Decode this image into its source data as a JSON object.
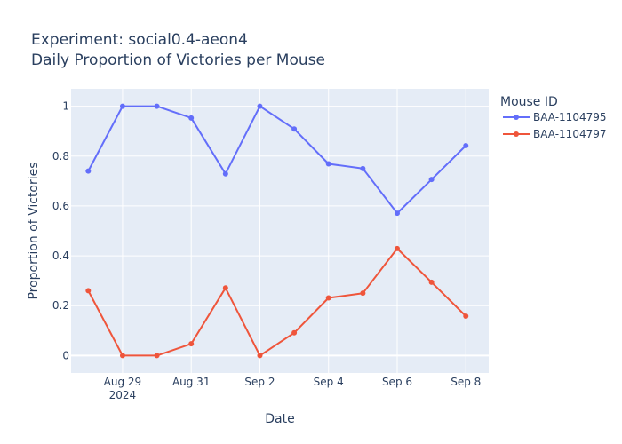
{
  "chart_data": {
    "type": "line",
    "title_line1": "Experiment: social0.4-aeon4",
    "title_line2": "Daily Proportion of Victories per Mouse",
    "xlabel": "Date",
    "ylabel": "Proportion of Victories",
    "x": [
      "2024-08-28",
      "2024-08-29",
      "2024-08-30",
      "2024-08-31",
      "2024-09-01",
      "2024-09-02",
      "2024-09-03",
      "2024-09-04",
      "2024-09-05",
      "2024-09-06",
      "2024-09-07",
      "2024-09-08"
    ],
    "x_ticks": [
      {
        "date": "2024-08-29",
        "label": "Aug 29",
        "sublabel": "2024"
      },
      {
        "date": "2024-08-31",
        "label": "Aug 31",
        "sublabel": ""
      },
      {
        "date": "2024-09-02",
        "label": "Sep 2",
        "sublabel": ""
      },
      {
        "date": "2024-09-04",
        "label": "Sep 4",
        "sublabel": ""
      },
      {
        "date": "2024-09-06",
        "label": "Sep 6",
        "sublabel": ""
      },
      {
        "date": "2024-09-08",
        "label": "Sep 8",
        "sublabel": ""
      }
    ],
    "xlim": [
      "2024-08-27T12:00",
      "2024-09-08T16:00"
    ],
    "ylim": [
      -0.07,
      1.07
    ],
    "y_ticks": [
      0,
      0.2,
      0.4,
      0.6,
      0.8,
      1
    ],
    "y_tick_labels": [
      "0",
      "0.2",
      "0.4",
      "0.6",
      "0.8",
      "1"
    ],
    "grid": true,
    "legend": {
      "title": "Mouse ID",
      "placement": "top-right"
    },
    "series": [
      {
        "name": "BAA-1104795",
        "color": "#636efa",
        "values": [
          0.74,
          1.0,
          1.0,
          0.953,
          0.729,
          1.0,
          0.909,
          0.769,
          0.75,
          0.571,
          0.706,
          0.842
        ]
      },
      {
        "name": "BAA-1104797",
        "color": "#ef553b",
        "values": [
          0.26,
          0.0,
          0.0,
          0.047,
          0.271,
          0.0,
          0.091,
          0.231,
          0.25,
          0.429,
          0.294,
          0.158
        ]
      }
    ],
    "plot_bg": "#e5ecf6",
    "grid_color": "#ffffff"
  }
}
